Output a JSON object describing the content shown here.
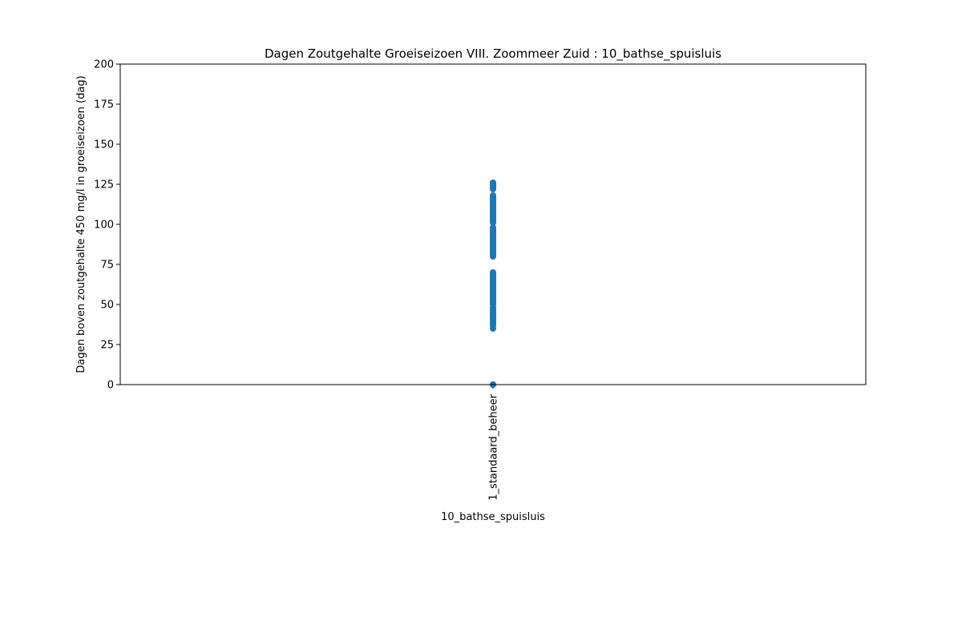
{
  "chart_data": {
    "type": "scatter",
    "title": "Dagen Zoutgehalte Groeiseizoen VIII. Zoommeer Zuid : 10_bathse_spuisluis",
    "xlabel": "10_bathse_spuisluis",
    "ylabel": "Dagen boven zoutgehalte 450 mg/l in groeiseizoen (dag)",
    "categories": [
      "1_standaard_beheer"
    ],
    "ylim": [
      0,
      200
    ],
    "yticks": [
      0,
      25,
      50,
      75,
      100,
      125,
      150,
      175,
      200
    ],
    "grid": false,
    "legend": "none",
    "color": "#1f77b4",
    "series": [
      {
        "category": "1_standaard_beheer",
        "values": [
          0,
          0,
          0,
          35,
          37,
          38,
          39,
          40,
          41,
          42,
          43,
          44,
          45,
          46,
          47,
          48,
          50,
          51,
          52,
          53,
          54,
          55,
          56,
          57,
          58,
          59,
          60,
          61,
          62,
          63,
          64,
          65,
          66,
          67,
          68,
          69,
          70,
          80,
          81,
          82,
          83,
          84,
          85,
          86,
          87,
          88,
          89,
          90,
          91,
          92,
          93,
          94,
          95,
          96,
          97,
          98,
          101,
          102,
          103,
          104,
          105,
          106,
          107,
          108,
          109,
          110,
          111,
          112,
          113,
          114,
          115,
          116,
          117,
          118,
          122,
          123,
          124,
          125,
          126
        ]
      }
    ]
  }
}
